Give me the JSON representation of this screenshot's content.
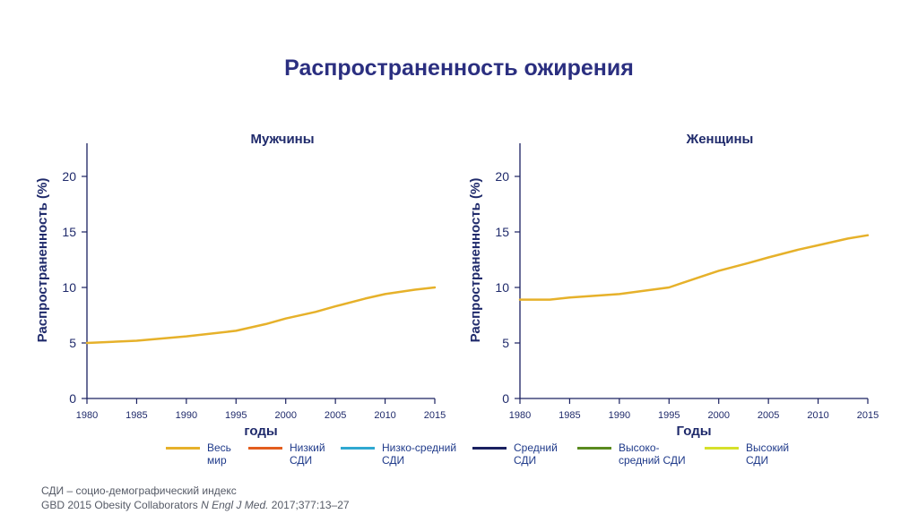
{
  "title": "Распространенность ожирения",
  "chart_data": [
    {
      "type": "line",
      "title": "Мужчины",
      "xlabel": "годы",
      "ylabel": "Распространенность (%)",
      "xlim": [
        1980,
        2015
      ],
      "ylim": [
        0,
        20
      ],
      "xticks": [
        1980,
        1985,
        1990,
        1995,
        2000,
        2005,
        2010,
        2015
      ],
      "yticks": [
        0,
        5,
        10,
        15,
        20
      ],
      "series": [
        {
          "name": "Весь мир",
          "color": "#e6b12a",
          "x": [
            1980,
            1985,
            1990,
            1995,
            1998,
            2000,
            2003,
            2005,
            2008,
            2010,
            2013,
            2015
          ],
          "y": [
            5.0,
            5.2,
            5.6,
            6.1,
            6.7,
            7.2,
            7.8,
            8.3,
            9.0,
            9.4,
            9.8,
            10.0
          ]
        }
      ]
    },
    {
      "type": "line",
      "title": "Женщины",
      "xlabel": "Годы",
      "ylabel": "Распространенность (%)",
      "xlim": [
        1980,
        2015
      ],
      "ylim": [
        0,
        20
      ],
      "xticks": [
        1980,
        1985,
        1990,
        1995,
        2000,
        2005,
        2010,
        2015
      ],
      "yticks": [
        0,
        5,
        10,
        15,
        20
      ],
      "series": [
        {
          "name": "Весь мир",
          "color": "#e6b12a",
          "x": [
            1980,
            1983,
            1985,
            1990,
            1995,
            1998,
            2000,
            2003,
            2005,
            2008,
            2010,
            2013,
            2015
          ],
          "y": [
            8.9,
            8.9,
            9.1,
            9.4,
            10.0,
            10.9,
            11.5,
            12.2,
            12.7,
            13.4,
            13.8,
            14.4,
            14.7
          ]
        }
      ]
    }
  ],
  "legend": [
    {
      "label": "Весь\nмир",
      "color": "#e6b12a"
    },
    {
      "label": "Низкий\nСДИ",
      "color": "#e35d1e"
    },
    {
      "label": "Низко-средний\nСДИ",
      "color": "#2fa8d1"
    },
    {
      "label": "Средний\nСДИ",
      "color": "#1a2160"
    },
    {
      "label": "Высоко-\nсредний СДИ",
      "color": "#5a8a1f"
    },
    {
      "label": "Высокий\nСДИ",
      "color": "#d6e02a"
    }
  ],
  "footnote": "СДИ – социо-демографический индекс",
  "reference": {
    "authors": "GBD 2015 Obesity Collaborators ",
    "journal": "N Engl J Med.",
    "details": " 2017;377:13–27"
  }
}
